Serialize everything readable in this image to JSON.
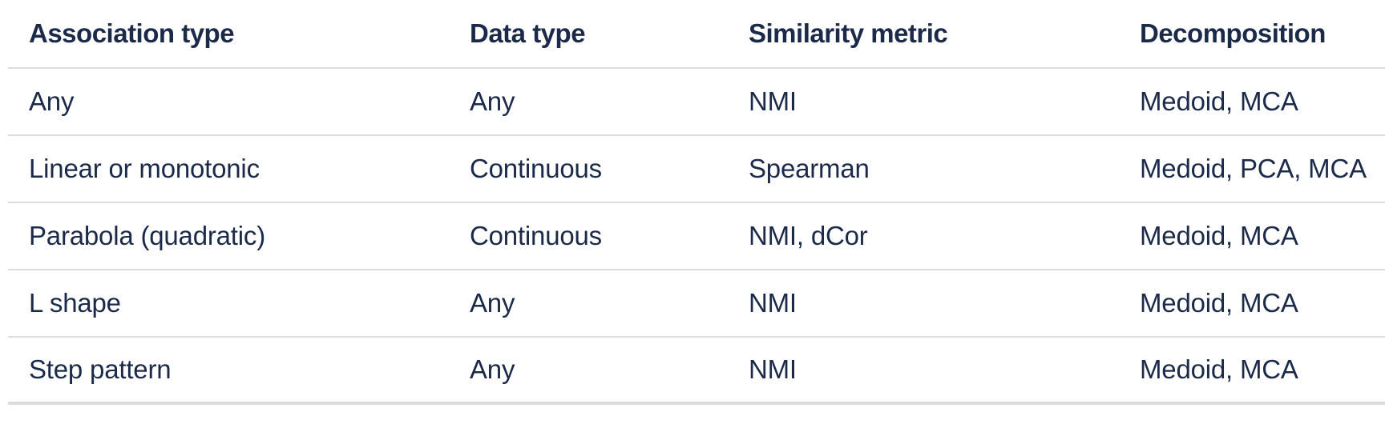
{
  "table": {
    "headers": [
      "Association type",
      "Data type",
      "Similarity metric",
      "Decomposition"
    ],
    "rows": [
      [
        "Any",
        "Any",
        "NMI",
        "Medoid, MCA"
      ],
      [
        "Linear or monotonic",
        "Continuous",
        "Spearman",
        "Medoid, PCA, MCA"
      ],
      [
        "Parabola (quadratic)",
        "Continuous",
        "NMI, dCor",
        "Medoid, MCA"
      ],
      [
        "L shape",
        "Any",
        "NMI",
        "Medoid, MCA"
      ],
      [
        "Step pattern",
        "Any",
        "NMI",
        "Medoid, MCA"
      ]
    ]
  }
}
